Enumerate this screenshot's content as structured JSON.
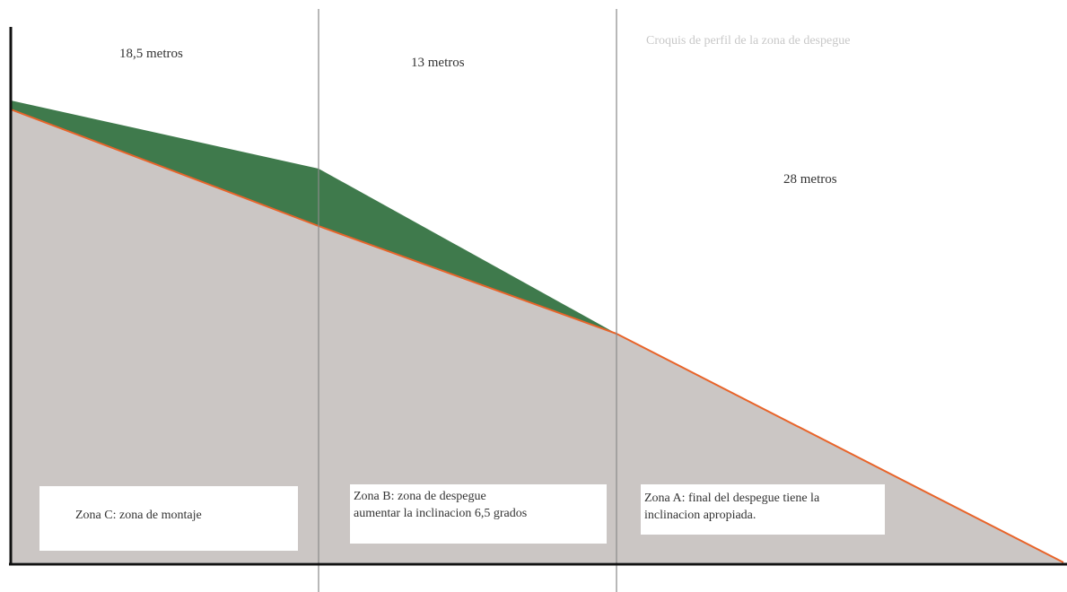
{
  "caption": "Croquis de perfil de la zona de despegue",
  "measurements": {
    "zone_c": "18,5 metros",
    "zone_b": "13 metros",
    "zone_a": "28 metros"
  },
  "zones": {
    "c": {
      "line1": "Zona C: zona de montaje"
    },
    "b": {
      "line1": "Zona B: zona de despegue",
      "line2": "aumentar la inclinacion 6,5 grados"
    },
    "a": {
      "line1": "Zona A: final del despegue tiene la",
      "line2": "inclinacion apropiada."
    }
  },
  "colors": {
    "terrain": "#cbc6c4",
    "ramp": "#3f7a4c",
    "slope_line": "#e8642a",
    "axis": "#111111",
    "divider": "#8a8a8a"
  }
}
